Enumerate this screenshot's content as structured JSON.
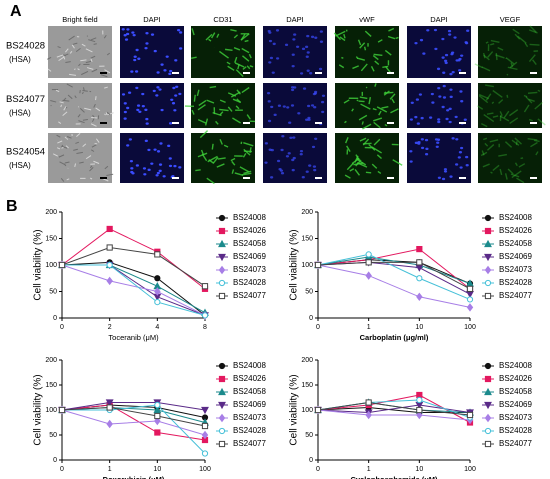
{
  "panels": [
    "A",
    "B"
  ],
  "image_grid": {
    "columns": [
      "Bright field",
      "DAPI",
      "CD31",
      "DAPI",
      "vWF",
      "DAPI",
      "VEGF"
    ],
    "rows": [
      {
        "name": "BS24028",
        "note": "(HSA)"
      },
      {
        "name": "BS24077",
        "note": "(HSA)"
      },
      {
        "name": "BS24054",
        "note": "(HSA)"
      }
    ]
  },
  "chart_data": [
    {
      "type": "line",
      "xlabel": "Toceranib (μM)",
      "ylabel": "Cell viability (%)",
      "categories": [
        "0",
        "2",
        "4",
        "8"
      ],
      "ylim": [
        0,
        200
      ],
      "yticks": [
        0,
        50,
        100,
        150,
        200
      ],
      "series": [
        {
          "name": "BS24008",
          "color": "#111111",
          "marker": "circle",
          "filled": true,
          "values": [
            100,
            105,
            75,
            5
          ]
        },
        {
          "name": "BS24026",
          "color": "#e3185f",
          "marker": "square",
          "filled": true,
          "values": [
            100,
            168,
            125,
            55
          ]
        },
        {
          "name": "BS24058",
          "color": "#1b8a8c",
          "marker": "triangle-up",
          "filled": true,
          "values": [
            100,
            100,
            60,
            10
          ]
        },
        {
          "name": "BS24069",
          "color": "#5a2a88",
          "marker": "triangle-down",
          "filled": true,
          "values": [
            100,
            100,
            40,
            5
          ]
        },
        {
          "name": "BS24073",
          "color": "#a77ee6",
          "marker": "diamond",
          "filled": true,
          "values": [
            100,
            70,
            50,
            5
          ]
        },
        {
          "name": "BS24028",
          "color": "#45c0d8",
          "marker": "circle",
          "filled": false,
          "values": [
            100,
            100,
            30,
            5
          ]
        },
        {
          "name": "BS24077",
          "color": "#444444",
          "marker": "square",
          "filled": false,
          "values": [
            100,
            133,
            120,
            60
          ]
        }
      ]
    },
    {
      "type": "line",
      "xlabel": "Carboplatin (μg/ml)",
      "ylabel": "Cell viability (%)",
      "categories": [
        "0",
        "1",
        "10",
        "100"
      ],
      "ylim": [
        0,
        200
      ],
      "yticks": [
        0,
        50,
        100,
        150,
        200
      ],
      "series": [
        {
          "name": "BS24008",
          "color": "#111111",
          "marker": "circle",
          "filled": true,
          "values": [
            100,
            110,
            105,
            65
          ]
        },
        {
          "name": "BS24026",
          "color": "#e3185f",
          "marker": "square",
          "filled": true,
          "values": [
            100,
            110,
            130,
            55
          ]
        },
        {
          "name": "BS24058",
          "color": "#1b8a8c",
          "marker": "triangle-up",
          "filled": true,
          "values": [
            100,
            115,
            100,
            65
          ]
        },
        {
          "name": "BS24069",
          "color": "#5a2a88",
          "marker": "triangle-down",
          "filled": true,
          "values": [
            100,
            105,
            95,
            45
          ]
        },
        {
          "name": "BS24073",
          "color": "#a77ee6",
          "marker": "diamond",
          "filled": true,
          "values": [
            100,
            80,
            40,
            20
          ]
        },
        {
          "name": "BS24028",
          "color": "#45c0d8",
          "marker": "circle",
          "filled": false,
          "values": [
            100,
            120,
            75,
            35
          ]
        },
        {
          "name": "BS24077",
          "color": "#444444",
          "marker": "square",
          "filled": false,
          "values": [
            100,
            105,
            105,
            55
          ]
        }
      ]
    },
    {
      "type": "line",
      "xlabel": "Doxorubicin (μM)",
      "ylabel": "Cell viability (%)",
      "categories": [
        "0",
        "1",
        "10",
        "100"
      ],
      "ylim": [
        0,
        200
      ],
      "yticks": [
        0,
        50,
        100,
        150,
        200
      ],
      "series": [
        {
          "name": "BS24008",
          "color": "#111111",
          "marker": "circle",
          "filled": true,
          "values": [
            100,
            110,
            105,
            85
          ]
        },
        {
          "name": "BS24026",
          "color": "#e3185f",
          "marker": "square",
          "filled": true,
          "values": [
            100,
            110,
            55,
            40
          ]
        },
        {
          "name": "BS24058",
          "color": "#1b8a8c",
          "marker": "triangle-up",
          "filled": true,
          "values": [
            100,
            105,
            100,
            75
          ]
        },
        {
          "name": "BS24069",
          "color": "#5a2a88",
          "marker": "triangle-down",
          "filled": true,
          "values": [
            100,
            115,
            115,
            100
          ]
        },
        {
          "name": "BS24073",
          "color": "#a77ee6",
          "marker": "diamond",
          "filled": true,
          "values": [
            100,
            72,
            78,
            50
          ]
        },
        {
          "name": "BS24028",
          "color": "#45c0d8",
          "marker": "circle",
          "filled": false,
          "values": [
            100,
            100,
            110,
            13
          ]
        },
        {
          "name": "BS24077",
          "color": "#444444",
          "marker": "square",
          "filled": false,
          "values": [
            100,
            105,
            88,
            68
          ]
        }
      ]
    },
    {
      "type": "line",
      "xlabel": "Cyclophosphamide (μM)",
      "ylabel": "Cell viability (%)",
      "categories": [
        "0",
        "1",
        "10",
        "100"
      ],
      "ylim": [
        0,
        200
      ],
      "yticks": [
        0,
        50,
        100,
        150,
        200
      ],
      "series": [
        {
          "name": "BS24008",
          "color": "#111111",
          "marker": "circle",
          "filled": true,
          "values": [
            100,
            105,
            95,
            95
          ]
        },
        {
          "name": "BS24026",
          "color": "#e3185f",
          "marker": "square",
          "filled": true,
          "values": [
            100,
            110,
            130,
            75
          ]
        },
        {
          "name": "BS24058",
          "color": "#1b8a8c",
          "marker": "triangle-up",
          "filled": true,
          "values": [
            100,
            115,
            100,
            95
          ]
        },
        {
          "name": "BS24069",
          "color": "#5a2a88",
          "marker": "triangle-down",
          "filled": true,
          "values": [
            100,
            95,
            110,
            95
          ]
        },
        {
          "name": "BS24073",
          "color": "#a77ee6",
          "marker": "diamond",
          "filled": true,
          "values": [
            100,
            90,
            90,
            80
          ]
        },
        {
          "name": "BS24028",
          "color": "#45c0d8",
          "marker": "circle",
          "filled": false,
          "values": [
            100,
            115,
            120,
            85
          ]
        },
        {
          "name": "BS24077",
          "color": "#444444",
          "marker": "square",
          "filled": false,
          "values": [
            100,
            115,
            100,
            90
          ]
        }
      ]
    }
  ]
}
